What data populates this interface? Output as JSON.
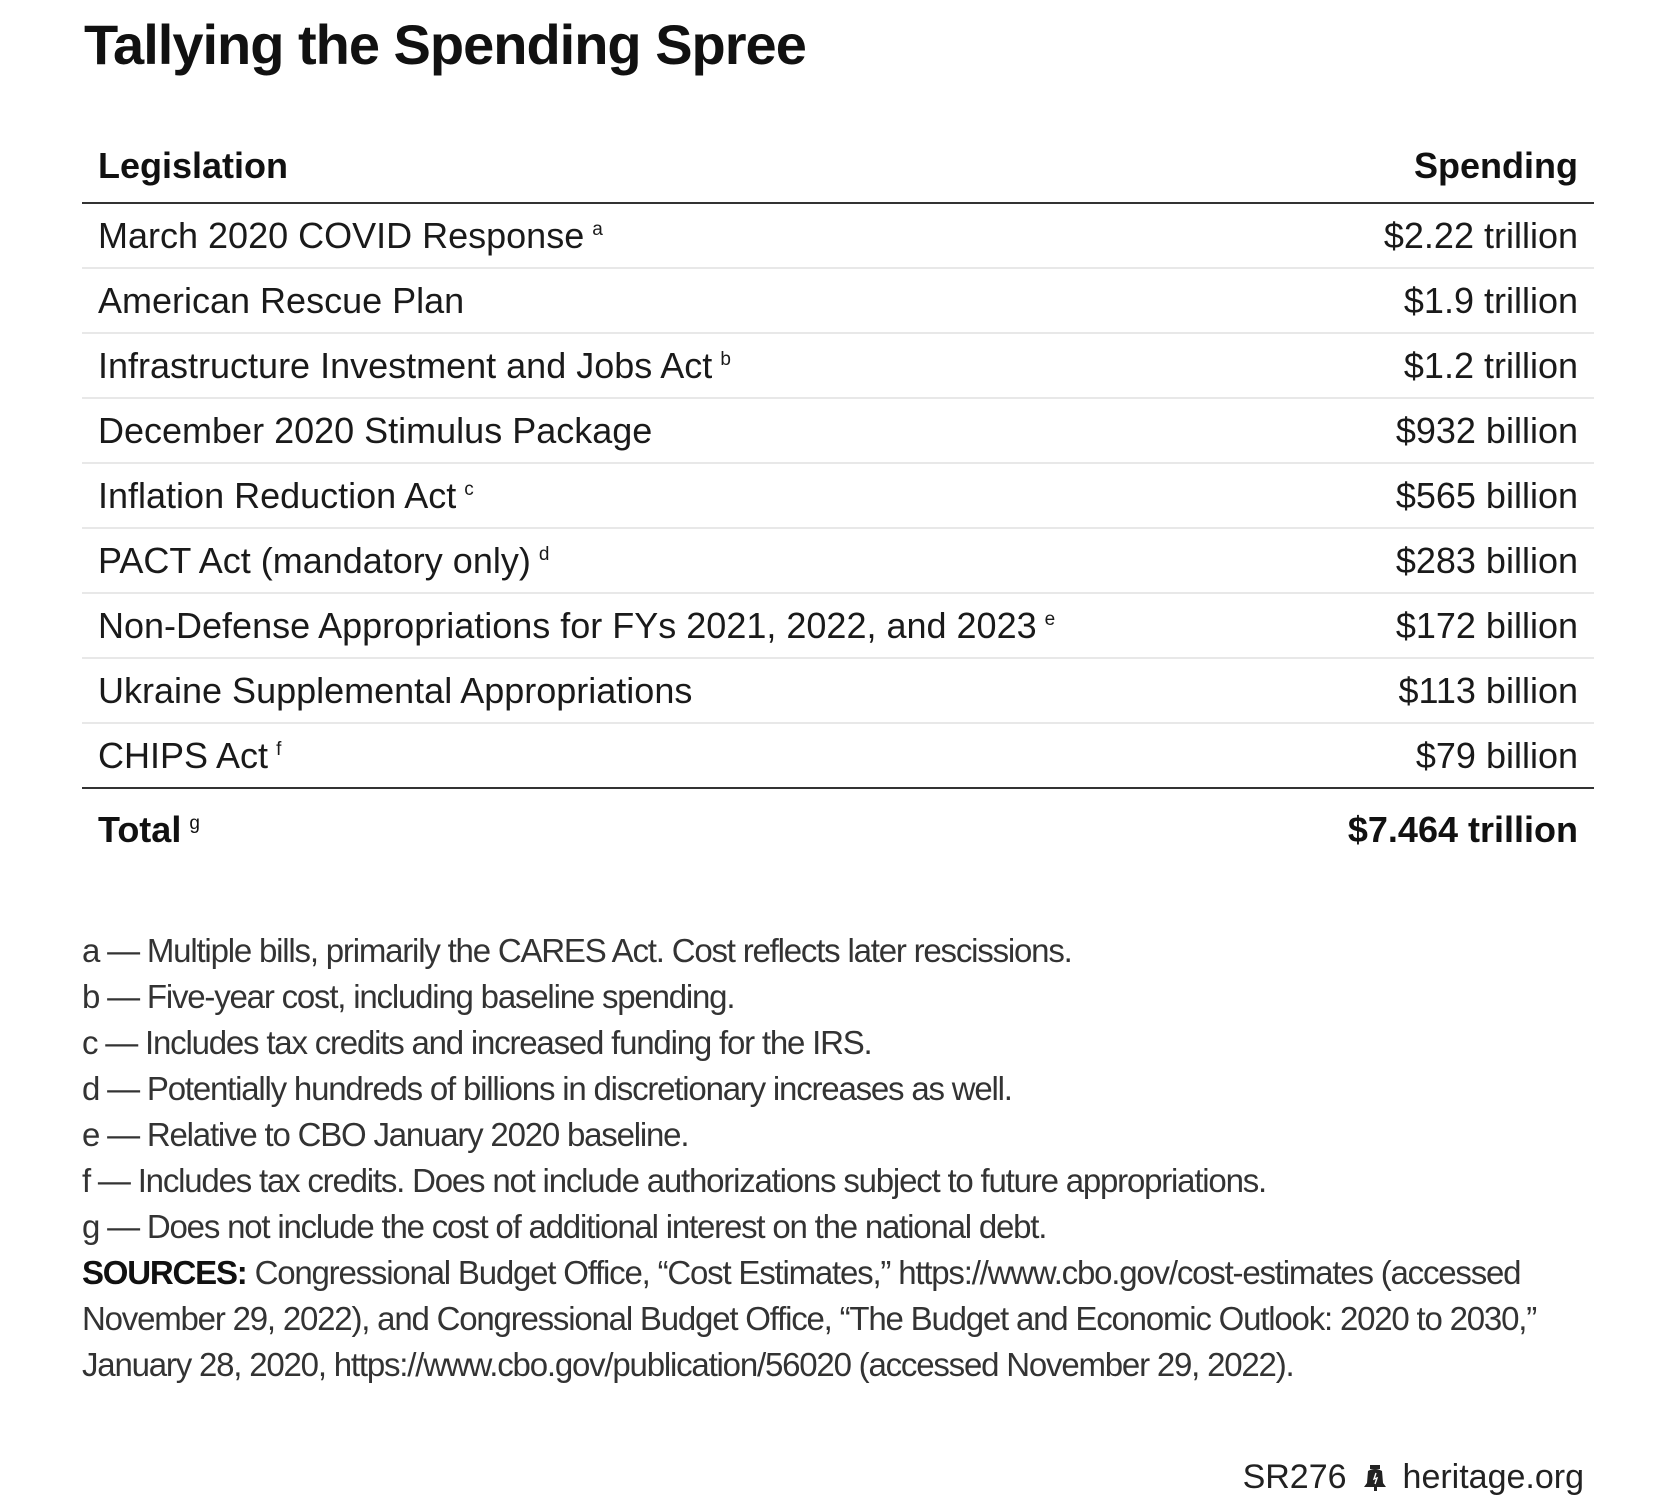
{
  "title": "Tallying the Spending Spree",
  "table": {
    "header": {
      "legislation": "Legislation",
      "spending": "Spending"
    },
    "rows": [
      {
        "label": "March 2020 COVID Response",
        "note": "a",
        "value": "$2.22 trillion"
      },
      {
        "label": "American Rescue Plan",
        "note": "",
        "value": "$1.9 trillion"
      },
      {
        "label": "Infrastructure Investment and Jobs Act",
        "note": "b",
        "value": "$1.2 trillion"
      },
      {
        "label": "December 2020 Stimulus Package",
        "note": "",
        "value": "$932 billion"
      },
      {
        "label": "Inflation Reduction Act",
        "note": "c",
        "value": "$565 billion"
      },
      {
        "label": "PACT Act (mandatory only)",
        "note": "d",
        "value": "$283 billion"
      },
      {
        "label": "Non-Defense Appropriations for FYs 2021, 2022, and 2023",
        "note": "e",
        "value": "$172 billion"
      },
      {
        "label": "Ukraine Supplemental Appropriations",
        "note": "",
        "value": "$113 billion"
      },
      {
        "label": "CHIPS Act",
        "note": "f",
        "value": "$79 billion"
      }
    ],
    "total": {
      "label": "Total",
      "note": "g",
      "value": "$7.464 trillion"
    }
  },
  "notes": [
    "a — Multiple bills, primarily the CARES Act. Cost reflects later rescissions.",
    "b — Five-year cost, including baseline spending.",
    "c — Includes tax credits and increased funding for the IRS.",
    "d — Potentially hundreds of billions in discretionary increases as well.",
    "e — Relative to CBO January 2020 baseline.",
    "f — Includes tax credits. Does not include authorizations subject to future appropriations.",
    "g — Does not include the cost of additional interest on the national debt."
  ],
  "sources": {
    "label": "SOURCES:",
    "text": "Congressional Budget Office, “Cost Estimates,” https://www.cbo.gov/cost-estimates (accessed November 29, 2022), and Congressional Budget Office, “The Budget and Economic Outlook: 2020 to 2030,” January 28, 2020, https://www.cbo.gov/publication/56020 (accessed November 29, 2022)."
  },
  "footer": {
    "code": "SR276",
    "icon": "liberty-bell-icon",
    "site": "heritage.org"
  }
}
